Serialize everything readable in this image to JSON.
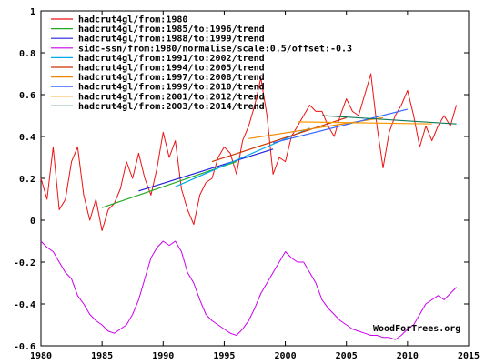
{
  "chart_data": {
    "type": "line",
    "title": "",
    "xlabel": "",
    "ylabel": "",
    "xlim": [
      1980,
      2015
    ],
    "ylim": [
      -0.6,
      1.0
    ],
    "grid": false,
    "legend_position": "top-left",
    "x_ticks": [
      "1980",
      "1985",
      "1990",
      "1995",
      "2000",
      "2005",
      "2010",
      "2015"
    ],
    "y_ticks": [
      "-0.6",
      "-0.4",
      "-0.2",
      "0",
      "0.2",
      "0.4",
      "0.6",
      "0.8",
      "1"
    ],
    "watermark": "WoodForTrees.org",
    "series": [
      {
        "name": "hadcrut4gl/from:1980",
        "color": "#ee1111",
        "kind": "raw",
        "x": [
          1980.0,
          1980.5,
          1981.0,
          1981.5,
          1982.0,
          1982.5,
          1983.0,
          1983.5,
          1984.0,
          1984.5,
          1985.0,
          1985.5,
          1986.0,
          1986.5,
          1987.0,
          1987.5,
          1988.0,
          1988.5,
          1989.0,
          1989.5,
          1990.0,
          1990.5,
          1991.0,
          1991.5,
          1992.0,
          1992.5,
          1993.0,
          1993.5,
          1994.0,
          1994.5,
          1995.0,
          1995.5,
          1996.0,
          1996.5,
          1997.0,
          1997.5,
          1998.0,
          1998.5,
          1999.0,
          1999.5,
          2000.0,
          2000.5,
          2001.0,
          2001.5,
          2002.0,
          2002.5,
          2003.0,
          2003.5,
          2004.0,
          2004.5,
          2005.0,
          2005.5,
          2006.0,
          2006.5,
          2007.0,
          2007.5,
          2008.0,
          2008.5,
          2009.0,
          2009.5,
          2010.0,
          2010.5,
          2011.0,
          2011.5,
          2012.0,
          2012.5,
          2013.0,
          2013.5,
          2014.0
        ],
        "values": [
          0.2,
          0.1,
          0.35,
          0.05,
          0.1,
          0.28,
          0.35,
          0.12,
          0.0,
          0.1,
          -0.05,
          0.05,
          0.08,
          0.15,
          0.28,
          0.2,
          0.32,
          0.2,
          0.12,
          0.25,
          0.42,
          0.3,
          0.38,
          0.15,
          0.05,
          -0.02,
          0.12,
          0.18,
          0.2,
          0.3,
          0.35,
          0.32,
          0.22,
          0.38,
          0.45,
          0.55,
          0.68,
          0.5,
          0.22,
          0.3,
          0.28,
          0.4,
          0.45,
          0.5,
          0.55,
          0.52,
          0.52,
          0.45,
          0.4,
          0.5,
          0.58,
          0.52,
          0.5,
          0.6,
          0.7,
          0.45,
          0.25,
          0.42,
          0.5,
          0.55,
          0.62,
          0.5,
          0.35,
          0.45,
          0.38,
          0.45,
          0.5,
          0.45,
          0.55
        ]
      },
      {
        "name": "hadcrut4gl/from:1985/to:1996/trend",
        "color": "#22aa22",
        "kind": "trend",
        "x": [
          1985.0,
          1996.0
        ],
        "values": [
          0.06,
          0.28
        ]
      },
      {
        "name": "hadcrut4gl/from:1988/to:1999/trend",
        "color": "#2222dd",
        "kind": "trend",
        "x": [
          1988.0,
          1999.0
        ],
        "values": [
          0.14,
          0.34
        ]
      },
      {
        "name": "sidc-ssn/from:1980/normalise/scale:0.5/offset:-0.3",
        "color": "#cc00ee",
        "kind": "raw",
        "x": [
          1980.0,
          1980.5,
          1981.0,
          1981.5,
          1982.0,
          1982.5,
          1983.0,
          1983.5,
          1984.0,
          1984.5,
          1985.0,
          1985.5,
          1986.0,
          1986.5,
          1987.0,
          1987.5,
          1988.0,
          1988.5,
          1989.0,
          1989.5,
          1990.0,
          1990.5,
          1991.0,
          1991.5,
          1992.0,
          1992.5,
          1993.0,
          1993.5,
          1994.0,
          1994.5,
          1995.0,
          1995.5,
          1996.0,
          1996.5,
          1997.0,
          1997.5,
          1998.0,
          1998.5,
          1999.0,
          1999.5,
          2000.0,
          2000.5,
          2001.0,
          2001.5,
          2002.0,
          2002.5,
          2003.0,
          2003.5,
          2004.0,
          2004.5,
          2005.0,
          2005.5,
          2006.0,
          2006.5,
          2007.0,
          2007.5,
          2008.0,
          2008.5,
          2009.0,
          2009.5,
          2010.0,
          2010.5,
          2011.0,
          2011.5,
          2012.0,
          2012.5,
          2013.0,
          2013.5,
          2014.0
        ],
        "values": [
          -0.1,
          -0.13,
          -0.15,
          -0.2,
          -0.25,
          -0.28,
          -0.36,
          -0.4,
          -0.45,
          -0.48,
          -0.5,
          -0.53,
          -0.54,
          -0.52,
          -0.5,
          -0.45,
          -0.38,
          -0.28,
          -0.18,
          -0.13,
          -0.1,
          -0.12,
          -0.1,
          -0.15,
          -0.25,
          -0.3,
          -0.38,
          -0.45,
          -0.48,
          -0.5,
          -0.52,
          -0.54,
          -0.55,
          -0.52,
          -0.48,
          -0.42,
          -0.35,
          -0.3,
          -0.25,
          -0.2,
          -0.15,
          -0.18,
          -0.2,
          -0.2,
          -0.25,
          -0.3,
          -0.38,
          -0.42,
          -0.45,
          -0.48,
          -0.5,
          -0.52,
          -0.53,
          -0.54,
          -0.55,
          -0.55,
          -0.56,
          -0.56,
          -0.57,
          -0.55,
          -0.52,
          -0.5,
          -0.45,
          -0.4,
          -0.38,
          -0.36,
          -0.38,
          -0.35,
          -0.32
        ]
      },
      {
        "name": "hadcrut4gl/from:1991/to:2002/trend",
        "color": "#00aaee",
        "kind": "trend",
        "x": [
          1991.0,
          2002.0
        ],
        "values": [
          0.16,
          0.44
        ]
      },
      {
        "name": "hadcrut4gl/from:1994/to:2005/trend",
        "color": "#cc3300",
        "kind": "trend",
        "x": [
          1994.0,
          2005.0
        ],
        "values": [
          0.28,
          0.49
        ]
      },
      {
        "name": "hadcrut4gl/from:1997/to:2008/trend",
        "color": "#ee8800",
        "kind": "trend",
        "x": [
          1997.0,
          2008.0
        ],
        "values": [
          0.39,
          0.49
        ]
      },
      {
        "name": "hadcrut4gl/from:1999/to:2010/trend",
        "color": "#3366ff",
        "kind": "trend",
        "x": [
          1999.0,
          2010.0
        ],
        "values": [
          0.37,
          0.53
        ]
      },
      {
        "name": "hadcrut4gl/from:2001/to:2012/trend",
        "color": "#ff9900",
        "kind": "trend",
        "x": [
          2001.0,
          2012.0
        ],
        "values": [
          0.47,
          0.46
        ]
      },
      {
        "name": "hadcrut4gl/from:2003/to:2014/trend",
        "color": "#117755",
        "kind": "trend",
        "x": [
          2003.0,
          2014.0
        ],
        "values": [
          0.5,
          0.46
        ]
      }
    ]
  }
}
